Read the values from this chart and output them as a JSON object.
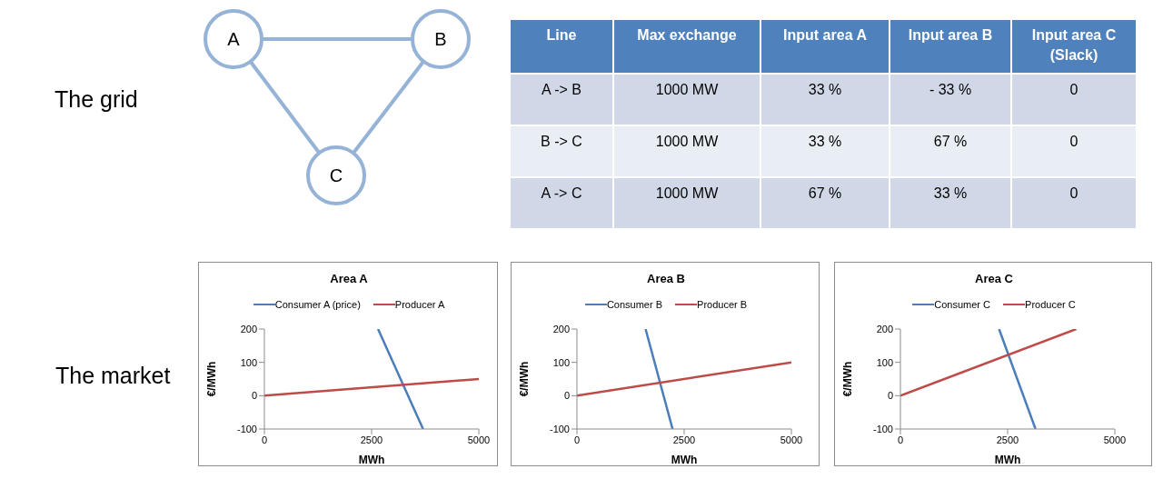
{
  "chart_data": [
    {
      "type": "other",
      "title": "The grid",
      "annotations": [
        "A",
        "B",
        "C"
      ],
      "categories": [
        "Line",
        "Max exchange",
        "Input area A",
        "Input area B",
        "Input area C (Slack)"
      ],
      "y_categories": [
        "A -> B",
        "B -> C",
        "A -> C"
      ],
      "cell_labels": [
        [
          "1000 MW",
          "33 %",
          "- 33 %",
          "0"
        ],
        [
          "1000 MW",
          "33 %",
          "67 %",
          "0"
        ],
        [
          "1000 MW",
          "67 %",
          "33 %",
          "0"
        ]
      ]
    },
    {
      "type": "line",
      "title": "Area A",
      "xlabel": "MWh",
      "ylabel": "€/MWh",
      "annotations": [
        "The market"
      ],
      "legend": "top",
      "xlim": [
        0,
        5000
      ],
      "xticks": [
        0,
        2500,
        5000
      ],
      "ylim": [
        -100,
        200
      ],
      "yticks": [
        -100,
        0,
        100,
        200
      ],
      "series": [
        {
          "name": "Consumer A (price)",
          "color": "#4a7ebb",
          "x": [
            2650,
            3700
          ],
          "values": [
            200,
            -100
          ]
        },
        {
          "name": "Producer A",
          "color": "#be4b48",
          "x": [
            0,
            5000
          ],
          "values": [
            0,
            50
          ]
        }
      ]
    },
    {
      "type": "line",
      "title": "Area B",
      "xlabel": "MWh",
      "ylabel": "€/MWh",
      "legend": "top",
      "xlim": [
        0,
        5000
      ],
      "xticks": [
        0,
        2500,
        5000
      ],
      "ylim": [
        -100,
        200
      ],
      "yticks": [
        -100,
        0,
        100,
        200
      ],
      "series": [
        {
          "name": "Consumer B",
          "color": "#4a7ebb",
          "x": [
            1600,
            2230
          ],
          "values": [
            200,
            -100
          ]
        },
        {
          "name": "Producer B",
          "color": "#be4b48",
          "x": [
            0,
            5000
          ],
          "values": [
            0,
            100
          ]
        }
      ]
    },
    {
      "type": "line",
      "title": "Area C",
      "xlabel": "MWh",
      "ylabel": "€/MWh",
      "legend": "top",
      "xlim": [
        0,
        5000
      ],
      "xticks": [
        0,
        2500,
        5000
      ],
      "ylim": [
        -100,
        200
      ],
      "yticks": [
        -100,
        0,
        100,
        200
      ],
      "series": [
        {
          "name": "Consumer C",
          "color": "#4a7ebb",
          "x": [
            2300,
            3150
          ],
          "values": [
            200,
            -100
          ]
        },
        {
          "name": "Producer C",
          "color": "#be4b48",
          "x": [
            0,
            4100
          ],
          "values": [
            0,
            200
          ]
        }
      ]
    }
  ]
}
